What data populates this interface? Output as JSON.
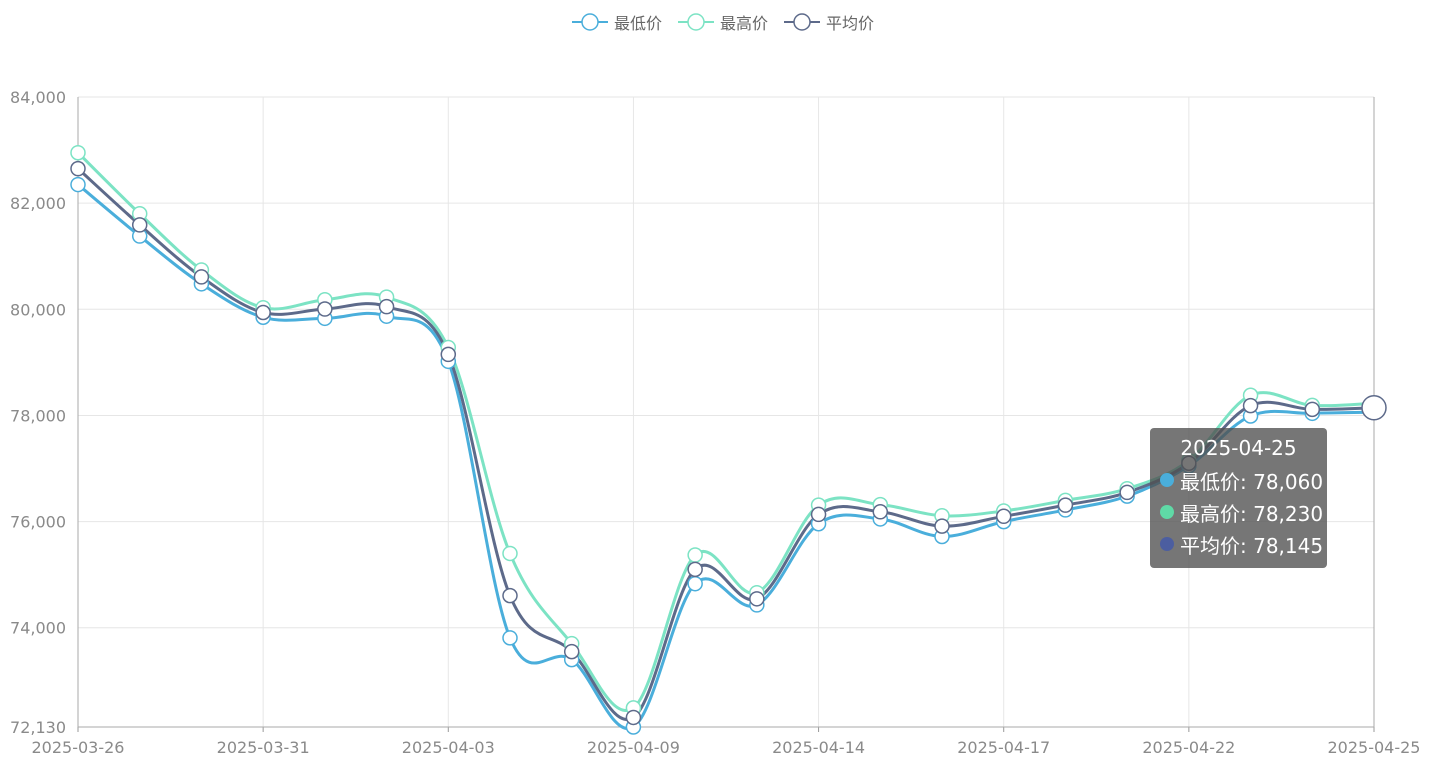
{
  "legend": [
    {
      "name": "最低价",
      "color": "#4aaedb"
    },
    {
      "name": "最高价",
      "color": "#7ce3c4"
    },
    {
      "name": "平均价",
      "color": "#5d6a8a"
    }
  ],
  "tooltip": {
    "title": "2025-04-25",
    "rows": [
      {
        "label": "最低价: 78,060",
        "color": "#4aaedb"
      },
      {
        "label": "最高价: 78,230",
        "color": "#5fd9a6"
      },
      {
        "label": "平均价: 78,145",
        "color": "#4c5ea0"
      }
    ]
  },
  "chart_data": {
    "type": "line",
    "smooth": true,
    "x_tick_labels": [
      "2025-03-26",
      "2025-03-31",
      "2025-04-03",
      "2025-04-09",
      "2025-04-14",
      "2025-04-17",
      "2025-04-22",
      "2025-04-25"
    ],
    "y_tick_labels": [
      "72,130",
      "74,000",
      "76,000",
      "78,000",
      "80,000",
      "82,000",
      "84,000"
    ],
    "y_ticks": [
      72130,
      74000,
      76000,
      78000,
      80000,
      82000,
      84000
    ],
    "ylim": [
      72130,
      84000
    ],
    "grid": true,
    "legend_position": "top-center",
    "point_count": 22,
    "series": [
      {
        "name": "最低价",
        "color": "#4aaedb",
        "values": [
          82350,
          81380,
          80480,
          79850,
          79830,
          79870,
          79020,
          73810,
          73400,
          72130,
          74830,
          74430,
          75960,
          76050,
          75720,
          76000,
          76220,
          76480,
          77050,
          77990,
          78040,
          78060
        ]
      },
      {
        "name": "最高价",
        "color": "#7ce3c4",
        "values": [
          82950,
          81800,
          80740,
          80030,
          80180,
          80230,
          79280,
          75400,
          73700,
          72490,
          75370,
          74660,
          76310,
          76320,
          76110,
          76200,
          76400,
          76620,
          77150,
          78380,
          78190,
          78230
        ]
      },
      {
        "name": "平均价",
        "color": "#5d6a8a",
        "values": [
          82650,
          81590,
          80610,
          79940,
          80005,
          80050,
          79150,
          74605,
          73550,
          72310,
          75100,
          74545,
          76135,
          76185,
          75915,
          76100,
          76310,
          76550,
          77100,
          78185,
          78115,
          78145
        ]
      }
    ]
  }
}
